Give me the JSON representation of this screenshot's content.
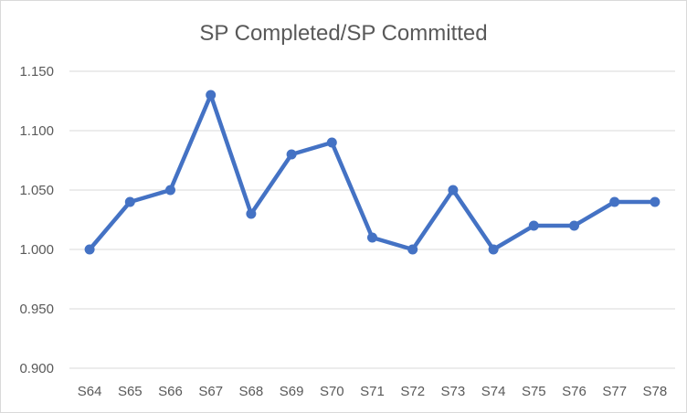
{
  "chart_data": {
    "type": "line",
    "title": "SP Completed/SP Committed",
    "xlabel": "",
    "ylabel": "",
    "categories": [
      "S64",
      "S65",
      "S66",
      "S67",
      "S68",
      "S69",
      "S70",
      "S71",
      "S72",
      "S73",
      "S74",
      "S75",
      "S76",
      "S77",
      "S78"
    ],
    "series": [
      {
        "values": [
          1.0,
          1.04,
          1.05,
          1.13,
          1.03,
          1.08,
          1.09,
          1.01,
          1.0,
          1.05,
          1.0,
          1.02,
          1.02,
          1.04,
          1.04
        ]
      }
    ],
    "ylim": [
      0.9,
      1.15
    ],
    "yticks": [
      "0.900",
      "0.950",
      "1.000",
      "1.050",
      "1.100",
      "1.150"
    ],
    "grid": true,
    "legend": "none",
    "colors": {
      "series": "#4472c4",
      "grid": "#d9d9d9",
      "text": "#595959"
    },
    "markers": "circle"
  }
}
